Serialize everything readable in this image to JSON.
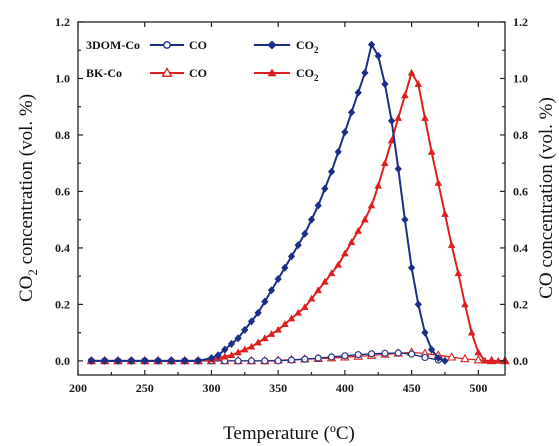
{
  "chart_data": {
    "type": "line",
    "xlabel": "Temperature (ºC)",
    "ylabel_left": {
      "main": "CO",
      "sub": "2",
      "rest": " concentration (vol. %)"
    },
    "ylabel_right": "CO concentration (vol. %)",
    "xlim": [
      200,
      520
    ],
    "ylim": [
      -0.05,
      1.2
    ],
    "xticks": [
      "200",
      "250",
      "300",
      "350",
      "400",
      "450",
      "500"
    ],
    "yticks_left": [
      "0.0",
      "0.2",
      "0.4",
      "0.6",
      "0.8",
      "1.0",
      "1.2"
    ],
    "yticks_right": [
      "0.0",
      "0.2",
      "0.4",
      "0.6",
      "0.8",
      "1.0",
      "1.2"
    ],
    "legend": {
      "position": "top-left",
      "groups": [
        {
          "label": "3DOM-Co",
          "co": "CO",
          "co2": "CO",
          "co2_sub": "2"
        },
        {
          "label": "BK-Co",
          "co": "CO",
          "co2": "CO",
          "co2_sub": "2"
        }
      ]
    },
    "colors": {
      "3DOM-Co": "#1b2f86",
      "BK-Co": "#dc2020"
    },
    "series": [
      {
        "name": "3DOM-Co CO",
        "color": "#1b2f86",
        "marker": "open-circle",
        "x": [
          210,
          220,
          230,
          240,
          250,
          260,
          270,
          280,
          290,
          300,
          310,
          320,
          330,
          340,
          350,
          360,
          370,
          380,
          390,
          400,
          410,
          420,
          430,
          440,
          450,
          460,
          470
        ],
        "values": [
          0,
          0,
          0,
          0,
          0,
          0,
          0,
          0,
          0,
          0,
          0,
          0,
          0,
          0,
          0,
          0.003,
          0.006,
          0.01,
          0.014,
          0.018,
          0.022,
          0.025,
          0.027,
          0.028,
          0.024,
          0.012,
          0.003
        ]
      },
      {
        "name": "3DOM-Co CO2",
        "color": "#1b2f86",
        "marker": "filled-diamond",
        "x": [
          210,
          220,
          230,
          240,
          250,
          260,
          270,
          280,
          290,
          300,
          305,
          310,
          315,
          320,
          325,
          330,
          335,
          340,
          345,
          350,
          355,
          360,
          365,
          370,
          375,
          380,
          385,
          390,
          395,
          400,
          405,
          410,
          415,
          420,
          425,
          430,
          435,
          440,
          445,
          450,
          455,
          460,
          465,
          470,
          475
        ],
        "values": [
          0,
          0,
          0,
          0,
          0,
          0,
          0,
          0,
          0,
          0.01,
          0.02,
          0.04,
          0.06,
          0.08,
          0.11,
          0.14,
          0.17,
          0.21,
          0.25,
          0.29,
          0.33,
          0.37,
          0.41,
          0.45,
          0.5,
          0.55,
          0.61,
          0.67,
          0.74,
          0.81,
          0.88,
          0.95,
          1.02,
          1.12,
          1.08,
          0.98,
          0.85,
          0.68,
          0.5,
          0.33,
          0.2,
          0.1,
          0.04,
          0.01,
          0
        ]
      },
      {
        "name": "BK-Co CO",
        "color": "#dc2020",
        "marker": "open-triangle",
        "x": [
          210,
          220,
          230,
          240,
          250,
          260,
          270,
          280,
          290,
          300,
          310,
          320,
          330,
          340,
          350,
          360,
          370,
          380,
          390,
          400,
          410,
          420,
          430,
          440,
          450,
          460,
          470,
          480,
          490,
          500,
          510,
          520
        ],
        "values": [
          0,
          0,
          0,
          0,
          0,
          0,
          0,
          0,
          0,
          0,
          0,
          0,
          0,
          0,
          0.002,
          0.004,
          0.006,
          0.008,
          0.01,
          0.013,
          0.016,
          0.019,
          0.023,
          0.027,
          0.03,
          0.026,
          0.02,
          0.013,
          0.007,
          0.003,
          0,
          0
        ]
      },
      {
        "name": "BK-Co CO2",
        "color": "#dc2020",
        "marker": "filled-triangle",
        "x": [
          210,
          220,
          230,
          240,
          250,
          260,
          270,
          280,
          290,
          300,
          305,
          310,
          315,
          320,
          325,
          330,
          335,
          340,
          345,
          350,
          355,
          360,
          365,
          370,
          375,
          380,
          385,
          390,
          395,
          400,
          405,
          410,
          415,
          420,
          425,
          430,
          435,
          440,
          445,
          450,
          455,
          460,
          465,
          470,
          475,
          480,
          485,
          490,
          495,
          500,
          505,
          510,
          515,
          520
        ],
        "values": [
          0,
          0,
          0,
          0,
          0,
          0,
          0,
          0,
          0,
          0.005,
          0.01,
          0.015,
          0.02,
          0.03,
          0.04,
          0.05,
          0.065,
          0.08,
          0.095,
          0.11,
          0.13,
          0.15,
          0.17,
          0.19,
          0.22,
          0.25,
          0.28,
          0.31,
          0.34,
          0.38,
          0.42,
          0.46,
          0.5,
          0.55,
          0.62,
          0.7,
          0.78,
          0.86,
          0.94,
          1.02,
          0.98,
          0.86,
          0.74,
          0.63,
          0.52,
          0.41,
          0.31,
          0.2,
          0.1,
          0.03,
          0,
          0,
          0,
          0
        ]
      }
    ]
  }
}
